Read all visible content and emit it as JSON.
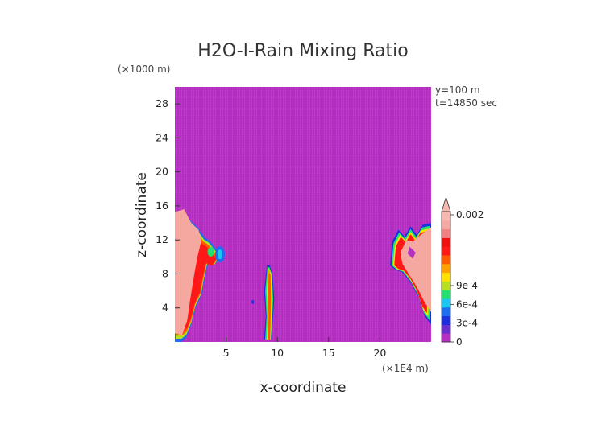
{
  "chart_data": {
    "type": "heatmap",
    "title": "H2O-l-Rain Mixing Ratio",
    "xlabel": "x-coordinate",
    "ylabel": "z-coordinate",
    "x_units": "(×1E4 m)",
    "y_units": "(×1000 m)",
    "xlim": [
      0,
      25
    ],
    "ylim": [
      0,
      30
    ],
    "x_ticks": [
      5,
      10,
      15,
      20
    ],
    "y_ticks": [
      4,
      8,
      12,
      16,
      20,
      24,
      28
    ],
    "annotations": [
      "y=100 m",
      "t=14850 sec"
    ],
    "colorbar": {
      "min": 0,
      "max": 0.002,
      "tick_labels": [
        "0",
        "3e-4",
        "6e-4",
        "9e-4",
        "0.002"
      ],
      "tick_values": [
        0,
        0.0003,
        0.0006,
        0.0009,
        0.002
      ],
      "extend": "max",
      "colors": [
        "#b52fc2",
        "#6a2fd0",
        "#1a2fe0",
        "#1c6df0",
        "#18c8f0",
        "#20e070",
        "#b8e020",
        "#ffe000",
        "#ffa000",
        "#ff5a00",
        "#ff1818",
        "#ee1010",
        "#f28080",
        "#f5a8a0",
        "#f7b8b0"
      ]
    },
    "background_value": 0,
    "features": [
      {
        "name": "left rain shaft",
        "x_range": [
          0,
          4.5
        ],
        "z_range": [
          0,
          15.5
        ],
        "peak": 0.002
      },
      {
        "name": "central rain column",
        "x_range": [
          8.7,
          9.8
        ],
        "z_range": [
          0,
          9
        ],
        "peak": 0.0009
      },
      {
        "name": "right rain shaft",
        "x_range": [
          21,
          25
        ],
        "z_range": [
          2,
          14
        ],
        "peak": 0.002
      }
    ]
  }
}
